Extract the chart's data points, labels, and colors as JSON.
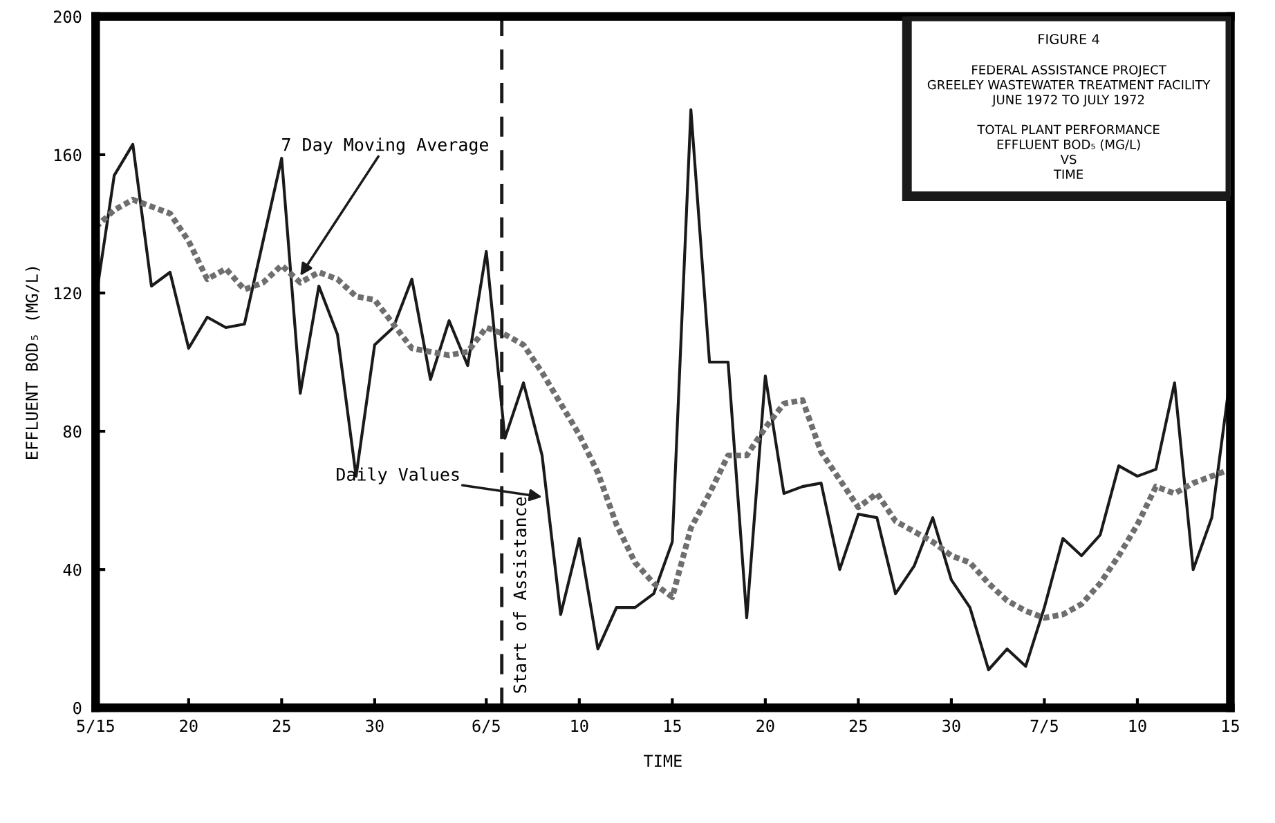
{
  "chart_data": {
    "type": "line",
    "title": "FIGURE 4",
    "subtitle": "FEDERAL ASSISTANCE PROJECT\nGREELEY WASTEWATER TREATMENT FACILITY\nJUNE 1972 TO JULY 1972\n\nTOTAL PLANT PERFORMANCE\nEFFLUENT BOD₅ (MG/L)\nVS\nTIME",
    "xlabel": "TIME",
    "ylabel": "EFFLUENT BOD₅ (MG/L)",
    "x": [
      "1972-05-15",
      "1972-05-16",
      "1972-05-17",
      "1972-05-18",
      "1972-05-19",
      "1972-05-20",
      "1972-05-21",
      "1972-05-22",
      "1972-05-23",
      "1972-05-24",
      "1972-05-25",
      "1972-05-26",
      "1972-05-27",
      "1972-05-28",
      "1972-05-29",
      "1972-05-30",
      "1972-05-31",
      "1972-06-01",
      "1972-06-02",
      "1972-06-03",
      "1972-06-04",
      "1972-06-05",
      "1972-06-06",
      "1972-06-07",
      "1972-06-08",
      "1972-06-09",
      "1972-06-10",
      "1972-06-11",
      "1972-06-12",
      "1972-06-13",
      "1972-06-14",
      "1972-06-15",
      "1972-06-16",
      "1972-06-17",
      "1972-06-18",
      "1972-06-19",
      "1972-06-20",
      "1972-06-21",
      "1972-06-22",
      "1972-06-23",
      "1972-06-24",
      "1972-06-25",
      "1972-06-26",
      "1972-06-27",
      "1972-06-28",
      "1972-06-29",
      "1972-06-30",
      "1972-07-01",
      "1972-07-02",
      "1972-07-03",
      "1972-07-04",
      "1972-07-05",
      "1972-07-06",
      "1972-07-07",
      "1972-07-08",
      "1972-07-09",
      "1972-07-10",
      "1972-07-11",
      "1972-07-12",
      "1972-07-13",
      "1972-07-14",
      "1972-07-15"
    ],
    "series": [
      {
        "color": "#1a1a1a",
        "line_style": "solid",
        "values": [
          118,
          154,
          163,
          122,
          126,
          104,
          113,
          110,
          111,
          135,
          159,
          91,
          122,
          108,
          67,
          105,
          110,
          124,
          95,
          112,
          99,
          132,
          78,
          94,
          73,
          27,
          49,
          17,
          29,
          29,
          33,
          48,
          173,
          100,
          100,
          26,
          96,
          62,
          64,
          65,
          40,
          56,
          55,
          33,
          41,
          55,
          37,
          29,
          11,
          17,
          12,
          29,
          49,
          44,
          50,
          70,
          67,
          69,
          94,
          40,
          55,
          96
        ]
      },
      {
        "color": "#6e6e6e",
        "line_style": "dotted",
        "values": [
          139,
          144,
          147,
          145,
          143,
          135,
          124,
          127,
          121,
          123,
          128,
          123,
          126,
          124,
          119,
          118,
          111,
          104,
          103,
          102,
          103,
          110,
          108,
          105,
          97,
          88,
          79,
          68,
          53,
          42,
          36,
          32,
          52,
          62,
          73,
          73,
          81,
          88,
          89,
          74,
          66,
          58,
          62,
          54,
          51,
          48,
          44,
          42,
          36,
          31,
          28,
          26,
          27,
          30,
          36,
          44,
          53,
          64,
          62,
          65,
          67,
          69
        ]
      }
    ],
    "xlim": [
      "1972-05-15",
      "1972-07-15"
    ],
    "xticks": [
      {
        "value": "1972-05-15",
        "label": "5/15"
      },
      {
        "value": "1972-05-20",
        "label": "20"
      },
      {
        "value": "1972-05-25",
        "label": "25"
      },
      {
        "value": "1972-05-30",
        "label": "30"
      },
      {
        "value": "1972-06-05",
        "label": "6/5"
      },
      {
        "value": "1972-06-10",
        "label": "10"
      },
      {
        "value": "1972-06-15",
        "label": "15"
      },
      {
        "value": "1972-06-20",
        "label": "20"
      },
      {
        "value": "1972-06-25",
        "label": "25"
      },
      {
        "value": "1972-06-30",
        "label": "30"
      },
      {
        "value": "1972-07-05",
        "label": "7/5"
      },
      {
        "value": "1972-07-10",
        "label": "10"
      },
      {
        "value": "1972-07-15",
        "label": "15"
      }
    ],
    "ylim": [
      0,
      200
    ],
    "yticks": [
      0,
      40,
      80,
      120,
      160,
      200
    ],
    "ref_lines": [
      {
        "axis": "x",
        "value": "1972-06-05T20:00",
        "label": "Start of Assistance",
        "color": "#1a1a1a",
        "line_style": "dashed"
      }
    ],
    "annotations": [
      {
        "text": "7 Day Moving Average",
        "x": "1972-05-26",
        "y": 125
      },
      {
        "text": "Daily Values",
        "x": "1972-06-08",
        "y": 61
      }
    ],
    "grid": false,
    "legend": false,
    "marker": "none"
  }
}
